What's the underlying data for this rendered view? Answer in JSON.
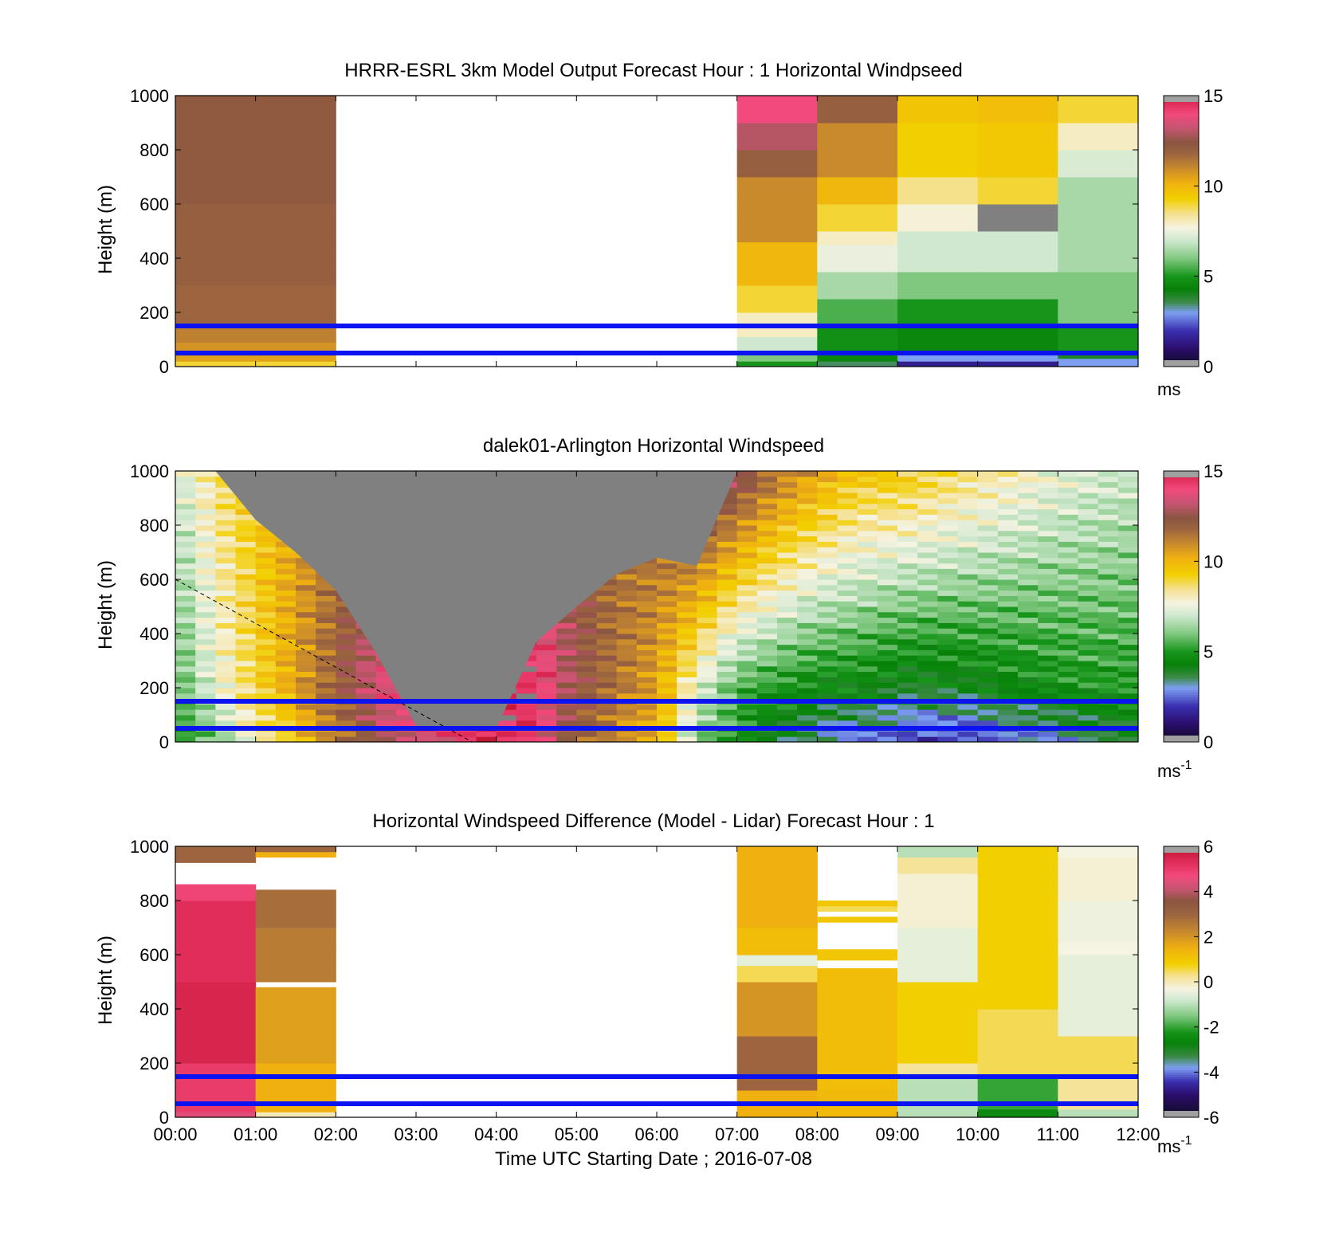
{
  "figure": {
    "xlabel": "Time UTC  Starting Date ; 2016-07-08",
    "x_tick_labels": [
      "00:00",
      "01:00",
      "02:00",
      "03:00",
      "04:00",
      "05:00",
      "06:00",
      "07:00",
      "08:00",
      "09:00",
      "10:00",
      "11:00",
      "12:00"
    ]
  },
  "chart_data": [
    {
      "type": "heatmap",
      "title": "HRRR-ESRL 3km Model Output   Forecast Hour : 1 Horizontal Windpseed",
      "ylabel": "Height (m)",
      "xlim": [
        0,
        12
      ],
      "ylim": [
        0,
        1000
      ],
      "y_ticks": [
        0,
        200,
        400,
        600,
        800,
        1000
      ],
      "colorbar": {
        "ticks": [
          0,
          5,
          10,
          15
        ],
        "range": [
          0,
          15
        ],
        "unit_label": "ms",
        "scale": "speed"
      },
      "reference_lines_m": [
        50,
        150
      ],
      "columns": [
        {
          "t0": 0,
          "t1": 1,
          "levels": [
            [
              0,
              20,
              9
            ],
            [
              20,
              40,
              10.5
            ],
            [
              40,
              90,
              10.8
            ],
            [
              90,
              150,
              11.2
            ],
            [
              150,
              300,
              11.8
            ],
            [
              300,
              600,
              12.0
            ],
            [
              600,
              1000,
              12.2
            ]
          ]
        },
        {
          "t0": 1,
          "t1": 2,
          "levels": [
            [
              0,
              20,
              9
            ],
            [
              20,
              40,
              10.5
            ],
            [
              40,
              90,
              10.8
            ],
            [
              90,
              150,
              11.2
            ],
            [
              150,
              300,
              11.8
            ],
            [
              300,
              600,
              12.0
            ],
            [
              600,
              1000,
              12.2
            ]
          ]
        },
        {
          "t0": 7,
          "t1": 8,
          "levels": [
            [
              0,
              20,
              5
            ],
            [
              20,
              50,
              6
            ],
            [
              50,
              110,
              7
            ],
            [
              110,
              200,
              8
            ],
            [
              200,
              300,
              9
            ],
            [
              300,
              460,
              10
            ],
            [
              460,
              700,
              11
            ],
            [
              700,
              800,
              12
            ],
            [
              800,
              900,
              13
            ],
            [
              900,
              1000,
              14
            ]
          ]
        },
        {
          "t0": 8,
          "t1": 9,
          "levels": [
            [
              0,
              20,
              3.5
            ],
            [
              20,
              60,
              4.5
            ],
            [
              60,
              150,
              4.8
            ],
            [
              150,
              250,
              5.5
            ],
            [
              250,
              350,
              6.5
            ],
            [
              350,
              450,
              7.5
            ],
            [
              450,
              500,
              8
            ],
            [
              500,
              600,
              9
            ],
            [
              600,
              700,
              10
            ],
            [
              700,
              900,
              11
            ],
            [
              900,
              1000,
              12
            ]
          ]
        },
        {
          "t0": 9,
          "t1": 10,
          "levels": [
            [
              0,
              20,
              1.5
            ],
            [
              20,
              60,
              3
            ],
            [
              60,
              150,
              4.5
            ],
            [
              150,
              250,
              5
            ],
            [
              250,
              350,
              6
            ],
            [
              350,
              500,
              7
            ],
            [
              500,
              600,
              7.8
            ],
            [
              600,
              700,
              8.5
            ],
            [
              700,
              900,
              9.3
            ],
            [
              900,
              1000,
              9.6
            ]
          ]
        },
        {
          "t0": 10,
          "t1": 11,
          "levels": [
            [
              0,
              20,
              1.5
            ],
            [
              20,
              60,
              3
            ],
            [
              60,
              150,
              4.5
            ],
            [
              150,
              250,
              5
            ],
            [
              250,
              350,
              6
            ],
            [
              350,
              500,
              7
            ],
            [
              500,
              600,
              15.5
            ],
            [
              600,
              700,
              9
            ],
            [
              700,
              900,
              9.5
            ],
            [
              900,
              1000,
              9.8
            ]
          ]
        },
        {
          "t0": 11,
          "t1": 12,
          "levels": [
            [
              0,
              30,
              3
            ],
            [
              30,
              60,
              4
            ],
            [
              60,
              150,
              5
            ],
            [
              150,
              350,
              6
            ],
            [
              350,
              700,
              6.5
            ],
            [
              700,
              800,
              7.2
            ],
            [
              800,
              900,
              8
            ],
            [
              900,
              1000,
              9
            ]
          ]
        }
      ]
    },
    {
      "type": "heatmap",
      "title": "dalek01-Arlington  Horizontal Windspeed",
      "ylabel": "Height (m)",
      "xlim": [
        0,
        12
      ],
      "ylim": [
        0,
        1000
      ],
      "y_ticks": [
        0,
        200,
        400,
        600,
        800,
        1000
      ],
      "colorbar": {
        "ticks": [
          0,
          5,
          10,
          15
        ],
        "range": [
          0,
          15
        ],
        "unit_label": "ms",
        "unit_exp": "-1",
        "scale": "speed"
      },
      "reference_lines_m": [
        50,
        150
      ],
      "gray_region": {
        "time": [
          0.5,
          1,
          1.5,
          2,
          2.5,
          3,
          3.5,
          4,
          4.5,
          5,
          5.5,
          6,
          6.5,
          7
        ],
        "bottom_m": [
          1000,
          820,
          700,
          560,
          330,
          60,
          50,
          50,
          370,
          500,
          620,
          680,
          650,
          1000
        ],
        "top_m": 1000,
        "value": 15.5
      },
      "dashed_line": {
        "t": [
          0,
          3.7
        ],
        "h": [
          600,
          0
        ]
      },
      "profiles": {
        "time": [
          0,
          0.5,
          1,
          1.5,
          2,
          2.5,
          3,
          3.5,
          4,
          4.5,
          5,
          5.5,
          6,
          6.5,
          7,
          7.5,
          8,
          8.5,
          9,
          9.5,
          10,
          10.5,
          11,
          11.5,
          12
        ],
        "h0": [
          4.5,
          6,
          8,
          9.5,
          11,
          12.5,
          13.5,
          14,
          14.5,
          14,
          12,
          11,
          10,
          6,
          5,
          4,
          3,
          2.5,
          2.5,
          2,
          2,
          2.5,
          3,
          3.5,
          4
        ],
        "h1": [
          5.5,
          7.5,
          9,
          10.5,
          12,
          13.5,
          14.5,
          15,
          15,
          14.5,
          12.5,
          11.5,
          10.5,
          7.5,
          5.5,
          5,
          4.5,
          4.5,
          4,
          4,
          4.2,
          4.5,
          4.8,
          5,
          5
        ],
        "top": [
          7,
          8.5,
          9.5,
          10.5,
          11.5,
          12.5,
          13,
          13.5,
          13.5,
          13.5,
          12.5,
          11.5,
          12,
          14,
          13,
          11.5,
          10.5,
          9.5,
          9.5,
          9,
          8.5,
          8,
          7.5,
          7.2,
          7
        ]
      }
    },
    {
      "type": "heatmap",
      "title": "Horizontal Windspeed Difference (Model - Lidar) Forecast Hour : 1",
      "ylabel": "Height (m)",
      "xlim": [
        0,
        12
      ],
      "ylim": [
        0,
        1000
      ],
      "y_ticks": [
        0,
        200,
        400,
        600,
        800,
        1000
      ],
      "colorbar": {
        "ticks": [
          -6,
          -4,
          -2,
          0,
          2,
          4,
          6
        ],
        "range": [
          -6,
          6
        ],
        "unit_label": "ms",
        "unit_exp": "-1",
        "scale": "diff"
      },
      "reference_lines_m": [
        50,
        150
      ],
      "columns": [
        {
          "t0": 0,
          "t1": 1,
          "levels": [
            [
              0,
              20,
              4.5
            ],
            [
              20,
              200,
              5
            ],
            [
              200,
              500,
              5.5
            ],
            [
              500,
              800,
              5.3
            ],
            [
              800,
              860,
              4.8
            ],
            [
              940,
              1000,
              3
            ]
          ]
        },
        {
          "t0": 1,
          "t1": 2,
          "levels": [
            [
              0,
              20,
              0
            ],
            [
              20,
              200,
              1.5
            ],
            [
              200,
              480,
              1.8
            ],
            [
              500,
              700,
              2.5
            ],
            [
              700,
              840,
              2.8
            ],
            [
              960,
              980,
              1.5
            ],
            [
              980,
              1000,
              3
            ]
          ]
        },
        {
          "t0": 7,
          "t1": 8,
          "levels": [
            [
              0,
              100,
              1.5
            ],
            [
              100,
              300,
              3
            ],
            [
              300,
              500,
              2
            ],
            [
              500,
              560,
              0.5
            ],
            [
              560,
              600,
              -0.5
            ],
            [
              600,
              700,
              1.2
            ],
            [
              700,
              1000,
              1.5
            ]
          ]
        },
        {
          "t0": 8,
          "t1": 9,
          "levels": [
            [
              0,
              100,
              1.3
            ],
            [
              100,
              550,
              1.2
            ],
            [
              580,
              620,
              1
            ],
            [
              720,
              740,
              1
            ],
            [
              760,
              780,
              0.5
            ],
            [
              780,
              800,
              1
            ]
          ]
        },
        {
          "t0": 9,
          "t1": 10,
          "levels": [
            [
              0,
              30,
              -1
            ],
            [
              30,
              150,
              -1
            ],
            [
              150,
              200,
              0.2
            ],
            [
              200,
              500,
              0.8
            ],
            [
              500,
              700,
              -0.5
            ],
            [
              700,
              900,
              -0.2
            ],
            [
              900,
              960,
              0.2
            ],
            [
              960,
              1000,
              -1
            ]
          ]
        },
        {
          "t0": 10,
          "t1": 11,
          "levels": [
            [
              0,
              30,
              -2.5
            ],
            [
              30,
              150,
              -2
            ],
            [
              150,
              400,
              0.5
            ],
            [
              400,
              1000,
              0.8
            ]
          ]
        },
        {
          "t0": 11,
          "t1": 12,
          "levels": [
            [
              0,
              30,
              -1
            ],
            [
              30,
              150,
              0.2
            ],
            [
              150,
              300,
              0.5
            ],
            [
              300,
              600,
              -0.5
            ],
            [
              600,
              650,
              -0.3
            ],
            [
              650,
              800,
              -0.4
            ],
            [
              800,
              960,
              -0.2
            ],
            [
              960,
              1000,
              -0.3
            ]
          ]
        }
      ]
    }
  ]
}
